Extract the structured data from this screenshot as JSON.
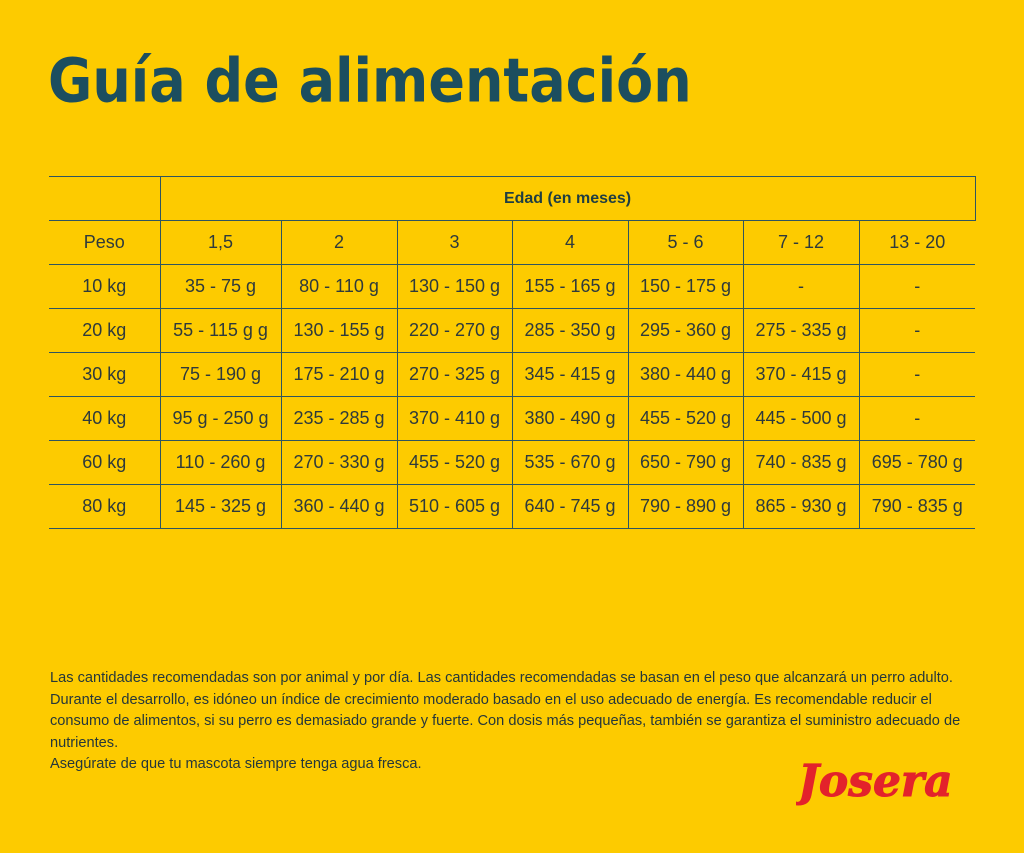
{
  "title": "Guía de alimentación",
  "table": {
    "age_header": "Edad (en meses)",
    "weight_header": "Peso",
    "ages": [
      "1,5",
      "2",
      "3",
      "4",
      "5 - 6",
      "7 - 12",
      "13 - 20"
    ],
    "rows": [
      {
        "weight": "10 kg",
        "values": [
          "35 - 75 g",
          "80 - 110 g",
          "130 - 150 g",
          "155 - 165 g",
          "150 - 175 g",
          "-",
          "-"
        ]
      },
      {
        "weight": "20 kg",
        "values": [
          "55 - 115 g g",
          "130 - 155 g",
          "220 - 270 g",
          "285 - 350 g",
          "295 - 360 g",
          "275 - 335 g",
          "-"
        ]
      },
      {
        "weight": "30 kg",
        "values": [
          "75 - 190 g",
          "175 - 210 g",
          "270 - 325 g",
          "345 - 415 g",
          "380 - 440 g",
          "370 - 415 g",
          "-"
        ]
      },
      {
        "weight": "40 kg",
        "values": [
          "95 g - 250 g",
          "235 - 285 g",
          "370 - 410 g",
          "380 - 490 g",
          "455 - 520 g",
          "445 - 500 g",
          "-"
        ]
      },
      {
        "weight": "60 kg",
        "values": [
          "110 - 260 g",
          "270 - 330 g",
          "455 - 520 g",
          "535 - 670 g",
          "650 - 790 g",
          "740 - 835 g",
          "695 - 780 g"
        ]
      },
      {
        "weight": "80 kg",
        "values": [
          "145 - 325 g",
          "360 - 440 g",
          "510 - 605 g",
          "640 - 745 g",
          "790 - 890 g",
          "865 - 930 g",
          "790 - 835 g"
        ]
      }
    ]
  },
  "note": {
    "paragraph": "Las cantidades recomendadas son por animal y por día. Las cantidades recomendadas se basan en el peso que alcanzará un perro adulto. Durante el desarrollo, es idóneo un índice de crecimiento moderado basado en el uso adecuado de energía. Es recomendable reducir el consumo de alimentos, si su perro es demasiado grande y fuerte. Con dosis más pequeñas, también se garantiza el suministro adecuado de nutrientes.",
    "water": "Asegúrate de que tu mascota siempre tenga agua fresca."
  },
  "logo": {
    "text": "Josera",
    "color": "#E3222B"
  },
  "colors": {
    "background": "#FDCB00",
    "title": "#1C4E5F",
    "grid": "#2F5560"
  }
}
